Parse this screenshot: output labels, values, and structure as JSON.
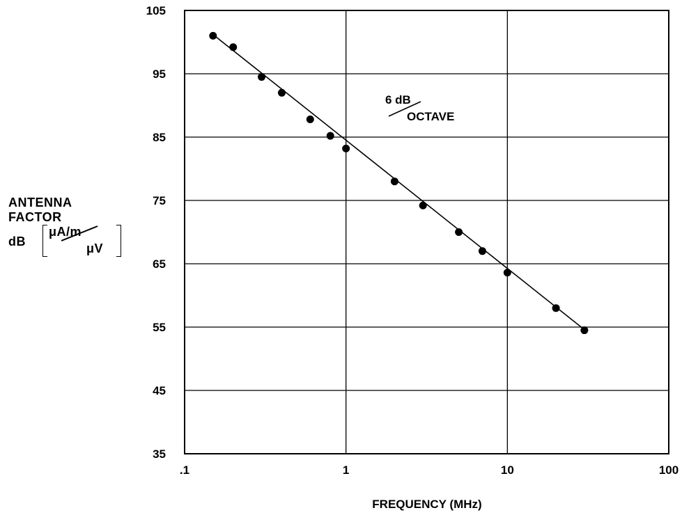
{
  "chart_data": {
    "type": "scatter",
    "x_scale": "log",
    "xlim": [
      0.1,
      100
    ],
    "ylim": [
      35,
      105
    ],
    "x_ticks": [
      0.1,
      1,
      10,
      100
    ],
    "x_tick_labels": [
      ".1",
      "1",
      "10",
      "100"
    ],
    "y_ticks": [
      35,
      45,
      55,
      65,
      75,
      85,
      95,
      105
    ],
    "y_tick_labels": [
      "35",
      "45",
      "55",
      "65",
      "75",
      "85",
      "95",
      "105"
    ],
    "xlabel": "FREQUENCY (MHz)",
    "ylabel_lines": [
      "ANTENNA",
      "FACTOR"
    ],
    "ylabel_unit": {
      "prefix": "dB",
      "numerator": "μA/m",
      "denominator": "μV"
    },
    "grid": true,
    "points": [
      {
        "x": 0.15,
        "y": 101
      },
      {
        "x": 0.2,
        "y": 99.2
      },
      {
        "x": 0.3,
        "y": 94.5
      },
      {
        "x": 0.4,
        "y": 92
      },
      {
        "x": 0.6,
        "y": 87.8
      },
      {
        "x": 0.8,
        "y": 85.2
      },
      {
        "x": 1,
        "y": 83.2
      },
      {
        "x": 2,
        "y": 78
      },
      {
        "x": 3,
        "y": 74.2
      },
      {
        "x": 5,
        "y": 70
      },
      {
        "x": 7,
        "y": 67
      },
      {
        "x": 10,
        "y": 63.6
      },
      {
        "x": 20,
        "y": 58
      },
      {
        "x": 30,
        "y": 54.5
      }
    ],
    "fit_line": {
      "start": {
        "x": 0.15,
        "y": 101.2
      },
      "end": {
        "x": 30,
        "y": 54.6
      }
    },
    "annotation": {
      "numerator": "6 dB",
      "denominator": "OCTAVE"
    }
  }
}
